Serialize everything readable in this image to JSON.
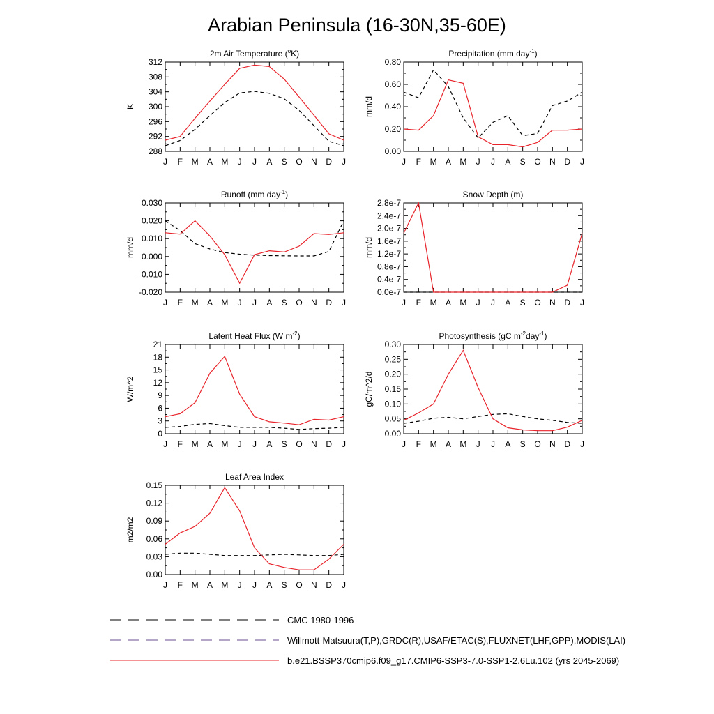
{
  "title": "Arabian Peninsula (16-30N,35-60E)",
  "months": [
    "J",
    "F",
    "M",
    "A",
    "M",
    "J",
    "J",
    "A",
    "S",
    "O",
    "N",
    "D",
    "J"
  ],
  "colors": {
    "model": "#e8242b",
    "obs": "#000000"
  },
  "legend": [
    {
      "label": "CMC 1980-1996",
      "style": "dashed",
      "color": "#000000"
    },
    {
      "label": "Willmott-Matsuura(T,P),GRDC(R),USAF/ETAC(S),FLUXNET(LHF,GPP),MODIS(LAI)",
      "style": "dashed",
      "color": "#6a4c8c"
    },
    {
      "label": "b.e21.BSSP370cmip6.f09_g17.CMIP6-SSP3-7.0-SSP1-2.6Lu.102 (yrs 2045-2069)",
      "style": "solid",
      "color": "#e8242b"
    }
  ],
  "chart_data": [
    {
      "type": "line",
      "title_main": "2m Air Temperature (",
      "title_sup": "o",
      "title_rest": "K)",
      "ylabel": "K",
      "ylim": [
        288,
        312
      ],
      "yticks": [
        "288",
        "292",
        "296",
        "300",
        "304",
        "308",
        "312"
      ],
      "x": [
        "J",
        "F",
        "M",
        "A",
        "M",
        "J",
        "J",
        "A",
        "S",
        "O",
        "N",
        "D",
        "J"
      ],
      "series": [
        {
          "role": "model",
          "values": [
            291.0,
            292.0,
            296.9,
            301.5,
            306.0,
            310.3,
            311.2,
            310.8,
            307.4,
            302.6,
            297.7,
            292.7,
            291.0
          ]
        },
        {
          "role": "obs",
          "values": [
            289.5,
            290.9,
            293.9,
            297.6,
            301.1,
            303.7,
            304.1,
            303.6,
            302.1,
            299.0,
            294.9,
            290.7,
            289.5
          ]
        }
      ]
    },
    {
      "type": "line",
      "title_main": "Precipitation (mm day",
      "title_sup": "-1",
      "title_rest": ")",
      "ylabel": "mm/d",
      "ylim": [
        0,
        0.8
      ],
      "yticks": [
        "0.00",
        "0.20",
        "0.40",
        "0.60",
        "0.80"
      ],
      "x": [
        "J",
        "F",
        "M",
        "A",
        "M",
        "J",
        "J",
        "A",
        "S",
        "O",
        "N",
        "D",
        "J"
      ],
      "series": [
        {
          "role": "model",
          "values": [
            0.2,
            0.19,
            0.32,
            0.64,
            0.61,
            0.13,
            0.06,
            0.06,
            0.04,
            0.08,
            0.19,
            0.19,
            0.2
          ]
        },
        {
          "role": "obs",
          "values": [
            0.53,
            0.48,
            0.73,
            0.58,
            0.3,
            0.12,
            0.26,
            0.32,
            0.14,
            0.16,
            0.41,
            0.45,
            0.53
          ]
        }
      ]
    },
    {
      "type": "line",
      "title_main": "Runoff (mm day",
      "title_sup": "-1",
      "title_rest": ")",
      "ylabel": "mm/d",
      "ylim": [
        -0.02,
        0.03
      ],
      "yticks": [
        "-0.020",
        "-0.010",
        "0.000",
        "0.010",
        "0.020",
        "0.030"
      ],
      "x": [
        "J",
        "F",
        "M",
        "A",
        "M",
        "J",
        "J",
        "A",
        "S",
        "O",
        "N",
        "D",
        "J"
      ],
      "series": [
        {
          "role": "model",
          "values": [
            0.0133,
            0.0125,
            0.02,
            0.0115,
            0.001,
            -0.015,
            0.001,
            0.0032,
            0.0025,
            0.0058,
            0.0128,
            0.0123,
            0.0133
          ]
        },
        {
          "role": "obs",
          "values": [
            0.02,
            0.0145,
            0.0072,
            0.0042,
            0.0022,
            0.0013,
            0.0008,
            0.0005,
            0.0004,
            0.0003,
            0.0003,
            0.0028,
            0.02
          ]
        }
      ]
    },
    {
      "type": "line",
      "title_main": "Snow Depth (m)",
      "title_sup": "",
      "title_rest": "",
      "ylabel": "mm/d",
      "ylim": [
        0,
        2.8
      ],
      "yticks": [
        "0.0e-7",
        "0.4e-7",
        "0.8e-7",
        "1.2e-7",
        "1.6e-7",
        "2.0e-7",
        "2.4e-7",
        "2.8e-7"
      ],
      "x": [
        "J",
        "F",
        "M",
        "A",
        "M",
        "J",
        "J",
        "A",
        "S",
        "O",
        "N",
        "D",
        "J"
      ],
      "series": [
        {
          "role": "model",
          "values": [
            1.85,
            2.8,
            0,
            0,
            0,
            0,
            0,
            0,
            0,
            0,
            0,
            0.22,
            1.85
          ]
        },
        {
          "role": "obs",
          "values": [
            0,
            0,
            0,
            0,
            0,
            0,
            0,
            0,
            0,
            0,
            0,
            0,
            0
          ]
        }
      ]
    },
    {
      "type": "line",
      "title_main": "Latent Heat Flux (W m",
      "title_sup": "-2",
      "title_rest": ")",
      "ylabel": "W/m^2",
      "ylim": [
        0,
        21
      ],
      "yticks": [
        "0",
        "3",
        "6",
        "9",
        "12",
        "15",
        "18",
        "21"
      ],
      "x": [
        "J",
        "F",
        "M",
        "A",
        "M",
        "J",
        "J",
        "A",
        "S",
        "O",
        "N",
        "D",
        "J"
      ],
      "series": [
        {
          "role": "model",
          "values": [
            4.0,
            4.7,
            7.3,
            14.2,
            18.2,
            9.3,
            4.0,
            2.8,
            2.5,
            2.1,
            3.4,
            3.2,
            4.0
          ]
        },
        {
          "role": "obs",
          "values": [
            1.5,
            1.7,
            2.2,
            2.4,
            1.9,
            1.5,
            1.5,
            1.5,
            1.3,
            1.0,
            1.2,
            1.3,
            1.5
          ]
        }
      ]
    },
    {
      "type": "line",
      "title_main": "Photosynthesis (gC m",
      "title_sup": "-2",
      "title_rest": "day",
      "title_sup2": "-1",
      "title_rest2": ")",
      "ylabel": "gC/m^2/d",
      "ylim": [
        0,
        0.3
      ],
      "yticks": [
        "0.00",
        "0.05",
        "0.10",
        "0.15",
        "0.20",
        "0.25",
        "0.30"
      ],
      "x": [
        "J",
        "F",
        "M",
        "A",
        "M",
        "J",
        "J",
        "A",
        "S",
        "O",
        "N",
        "D",
        "J"
      ],
      "series": [
        {
          "role": "model",
          "values": [
            0.045,
            0.07,
            0.1,
            0.2,
            0.28,
            0.155,
            0.05,
            0.02,
            0.013,
            0.01,
            0.01,
            0.022,
            0.045
          ]
        },
        {
          "role": "obs",
          "values": [
            0.035,
            0.042,
            0.052,
            0.055,
            0.05,
            0.058,
            0.065,
            0.067,
            0.058,
            0.05,
            0.045,
            0.038,
            0.035
          ]
        }
      ]
    },
    {
      "type": "line",
      "title_main": "Leaf Area Index",
      "title_sup": "",
      "title_rest": "",
      "ylabel": "m2/m2",
      "ylim": [
        0,
        0.15
      ],
      "yticks": [
        "0.00",
        "0.03",
        "0.06",
        "0.09",
        "0.12",
        "0.15"
      ],
      "x": [
        "J",
        "F",
        "M",
        "A",
        "M",
        "J",
        "J",
        "A",
        "S",
        "O",
        "N",
        "D",
        "J"
      ],
      "series": [
        {
          "role": "model",
          "values": [
            0.051,
            0.07,
            0.081,
            0.103,
            0.146,
            0.107,
            0.045,
            0.018,
            0.012,
            0.008,
            0.008,
            0.026,
            0.051
          ]
        },
        {
          "role": "obs",
          "values": [
            0.034,
            0.036,
            0.036,
            0.034,
            0.032,
            0.032,
            0.032,
            0.033,
            0.034,
            0.033,
            0.032,
            0.032,
            0.034
          ]
        }
      ]
    }
  ]
}
